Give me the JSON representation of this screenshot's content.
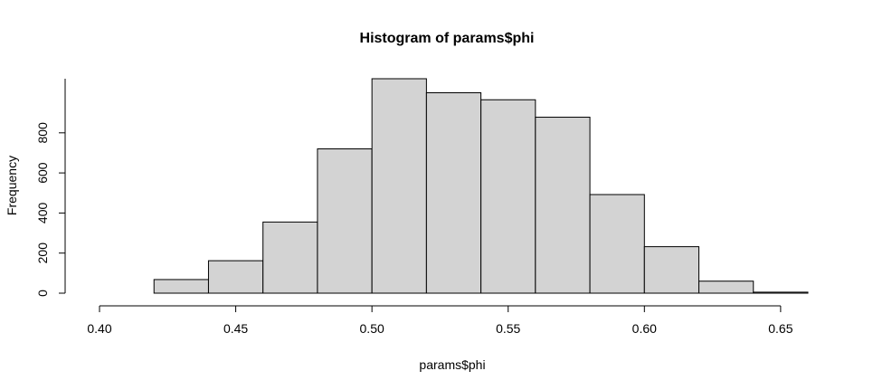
{
  "chart_data": {
    "type": "bar",
    "title": "Histogram of params$phi",
    "xlabel": "params$phi",
    "ylabel": "Frequency",
    "bin_edges": [
      0.4,
      0.42,
      0.44,
      0.46,
      0.48,
      0.5,
      0.52,
      0.54,
      0.56,
      0.58,
      0.6,
      0.62,
      0.64,
      0.66
    ],
    "values": [
      0,
      68,
      162,
      355,
      720,
      1070,
      1000,
      965,
      878,
      492,
      232,
      60,
      5
    ],
    "xlim": [
      0.4,
      0.66
    ],
    "ylim": [
      0,
      1070
    ],
    "x_ticks": [
      0.4,
      0.45,
      0.5,
      0.55,
      0.6,
      0.65
    ],
    "x_tick_labels": [
      "0.40",
      "0.45",
      "0.50",
      "0.55",
      "0.60",
      "0.65"
    ],
    "y_ticks": [
      0,
      200,
      400,
      600,
      800
    ],
    "y_tick_labels": [
      "0",
      "200",
      "400",
      "600",
      "800"
    ],
    "grid": false,
    "bar_fill": "#d3d3d3",
    "bar_stroke": "#000000"
  }
}
